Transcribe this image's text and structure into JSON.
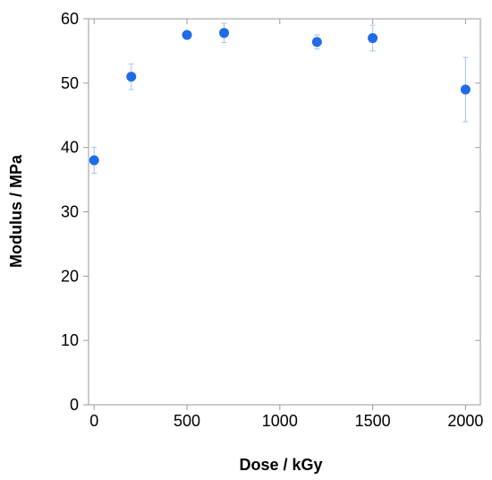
{
  "chart_data": {
    "type": "scatter",
    "title": "",
    "xlabel": "Dose / kGy",
    "ylabel": "Modulus / MPa",
    "xlim": [
      -30,
      2080
    ],
    "ylim": [
      0,
      60
    ],
    "x_ticks": [
      0,
      500,
      1000,
      1500,
      2000
    ],
    "y_ticks": [
      0,
      10,
      20,
      30,
      40,
      50,
      60
    ],
    "x_tick_labels": [
      "0",
      "500",
      "1000",
      "1500",
      "2000"
    ],
    "y_tick_labels": [
      "0",
      "10",
      "20",
      "30",
      "40",
      "50",
      "60"
    ],
    "grid": false,
    "legend": "none",
    "series": [
      {
        "color": "#1f6be8",
        "error_bar_color": "#9ec3ef",
        "points": [
          {
            "x": 0,
            "y": 38.0,
            "err": 2.0
          },
          {
            "x": 200,
            "y": 51.0,
            "err": 2.0
          },
          {
            "x": 500,
            "y": 57.5,
            "err": 0.5
          },
          {
            "x": 700,
            "y": 57.8,
            "err": 1.5
          },
          {
            "x": 1200,
            "y": 56.4,
            "err": 1.1
          },
          {
            "x": 1500,
            "y": 57.0,
            "err": 2.0
          },
          {
            "x": 2000,
            "y": 49.0,
            "err": 5.0
          }
        ]
      }
    ]
  }
}
